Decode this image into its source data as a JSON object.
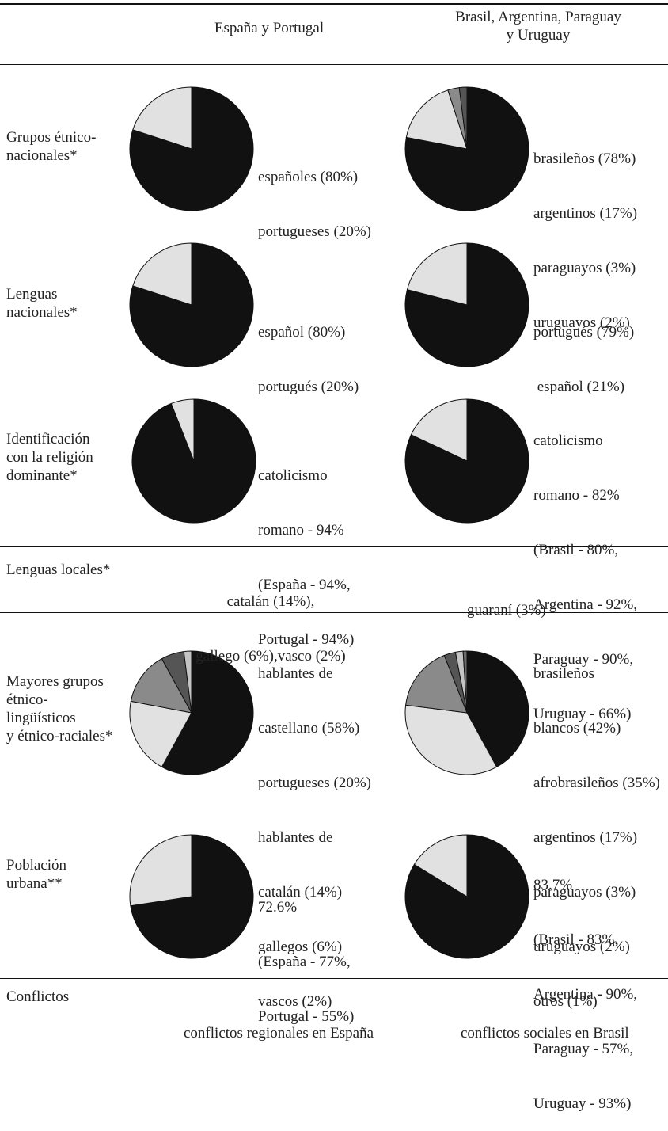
{
  "header": {
    "col1": "España y Portugal",
    "col2_line1": "Brasil, Argentina, Paraguay",
    "col2_line2": "y Uruguay"
  },
  "rows": [
    {
      "label_lines": [
        "Grupos étnico-",
        "nacionales*"
      ]
    },
    {
      "label_lines": [
        "Lenguas",
        "nacionales*"
      ]
    },
    {
      "label_lines": [
        "Identificación",
        "con la religión",
        "dominante*"
      ]
    },
    {
      "label_lines": [
        "Lenguas locales*"
      ]
    },
    {
      "label_lines": [
        "Mayores grupos",
        "étnico-",
        "lingüísticos",
        "y étnico-raciales*"
      ]
    },
    {
      "label_lines": [
        "Población",
        "urbana**"
      ]
    },
    {
      "label_lines": [
        "Conflictos"
      ]
    }
  ],
  "cells": {
    "r1_left": [
      "españoles (80%)",
      "portugueses (20%)"
    ],
    "r1_right": [
      "brasileños (78%)",
      "argentinos (17%)",
      "paraguayos (3%)",
      "uruguayos (2%)"
    ],
    "r2_left": [
      "español (80%)",
      "portugués (20%)"
    ],
    "r2_right": [
      "portugués (79%)",
      " español (21%)"
    ],
    "r3_left": [
      "catolicismo",
      "romano - 94%",
      "(España - 94%,",
      "Portugal - 94%)"
    ],
    "r3_right": [
      "catolicismo",
      "romano - 82%",
      "(Brasil - 80%,",
      "Argentina - 92%,",
      "Paraguay - 90%,",
      "Uruguay - 66%)"
    ],
    "r4_left": [
      "catalán (14%),",
      "gallego (6%),vasco (2%)"
    ],
    "r4_right": [
      "guaraní (3%)"
    ],
    "r5_left": [
      "hablantes de",
      "castellano (58%)",
      "portugueses (20%)",
      "hablantes de",
      "catalán (14%)",
      "gallegos (6%)",
      "vascos (2%)"
    ],
    "r5_right": [
      "brasileños",
      "blancos (42%)",
      "afrobrasileños (35%)",
      "argentinos (17%)",
      "paraguayos (3%)",
      "uruguayos (2%)",
      "otros (1%)"
    ],
    "r6_left": [
      "72.6%",
      "(España - 77%,",
      "Portugal - 55%)"
    ],
    "r6_right": [
      "83.7%",
      "(Brasil - 83%,",
      "Argentina - 90%,",
      "Paraguay - 57%,",
      "Uruguay - 93%)"
    ],
    "r7_left": [
      "conflictos regionales en España"
    ],
    "r7_right": [
      "conflictos sociales en Brasil"
    ]
  },
  "chart_data": [
    {
      "type": "pie",
      "id": "p1L",
      "values": [
        80,
        20
      ],
      "colors": [
        "#111111",
        "#e1e1e1"
      ]
    },
    {
      "type": "pie",
      "id": "p1R",
      "values": [
        78,
        17,
        3,
        2
      ],
      "colors": [
        "#111111",
        "#e1e1e1",
        "#8a8a8a",
        "#555555"
      ]
    },
    {
      "type": "pie",
      "id": "p2L",
      "values": [
        80,
        20
      ],
      "colors": [
        "#111111",
        "#e1e1e1"
      ]
    },
    {
      "type": "pie",
      "id": "p2R",
      "values": [
        79,
        21
      ],
      "colors": [
        "#111111",
        "#e1e1e1"
      ]
    },
    {
      "type": "pie",
      "id": "p3L",
      "values": [
        94,
        6
      ],
      "colors": [
        "#111111",
        "#e1e1e1"
      ]
    },
    {
      "type": "pie",
      "id": "p3R",
      "values": [
        82,
        18
      ],
      "colors": [
        "#111111",
        "#e1e1e1"
      ]
    },
    {
      "type": "pie",
      "id": "p5L",
      "values": [
        58,
        20,
        14,
        6,
        2
      ],
      "colors": [
        "#111111",
        "#e1e1e1",
        "#8a8a8a",
        "#555555",
        "#c4c4c4"
      ]
    },
    {
      "type": "pie",
      "id": "p5R",
      "values": [
        42,
        35,
        17,
        3,
        2,
        1
      ],
      "colors": [
        "#111111",
        "#e1e1e1",
        "#8a8a8a",
        "#555555",
        "#c4c4c4",
        "#6b6b6b"
      ]
    },
    {
      "type": "pie",
      "id": "p6L",
      "values": [
        72.6,
        27.4
      ],
      "colors": [
        "#111111",
        "#e1e1e1"
      ]
    },
    {
      "type": "pie",
      "id": "p6R",
      "values": [
        83.7,
        16.3
      ],
      "colors": [
        "#111111",
        "#e1e1e1"
      ]
    }
  ]
}
